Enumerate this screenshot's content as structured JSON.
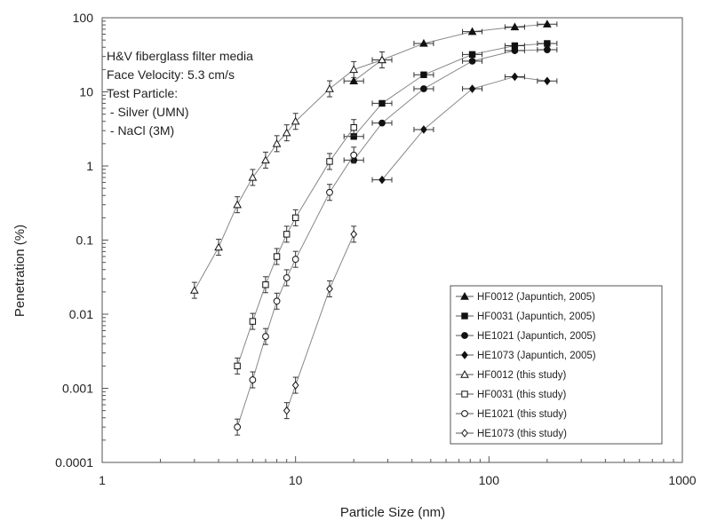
{
  "chart_data": {
    "type": "scatter",
    "xlabel": "Particle Size (nm)",
    "ylabel": "Penetration (%)",
    "x_scale": "log",
    "y_scale": "log",
    "xlim": [
      1,
      1000
    ],
    "ylim": [
      0.0001,
      100
    ],
    "x_ticks": [
      1,
      10,
      100,
      1000
    ],
    "x_tick_labels": [
      "1",
      "10",
      "100",
      "1000"
    ],
    "y_ticks": [
      0.0001,
      0.001,
      0.01,
      0.1,
      1,
      10,
      100
    ],
    "y_tick_labels": [
      "0.0001",
      "0.001",
      "0.01",
      "0.1",
      "1",
      "10",
      "100"
    ],
    "grid": false,
    "legend_position": "bottom-right",
    "annotations": [
      "H&V fiberglass filter media",
      "Face Velocity: 5.3 cm/s",
      "Test Particle:",
      " - Silver (UMN)",
      " - NaCl (3M)"
    ],
    "series": [
      {
        "name": "HF0012 (Japuntich, 2005)",
        "marker": "triangle",
        "filled": true,
        "x": [
          20,
          28,
          46,
          82,
          136,
          200
        ],
        "y": [
          14,
          27,
          45,
          65,
          75,
          82
        ]
      },
      {
        "name": "HF0031 (Japuntich, 2005)",
        "marker": "square",
        "filled": true,
        "x": [
          20,
          28,
          46,
          82,
          136,
          200
        ],
        "y": [
          2.5,
          7,
          17,
          32,
          42,
          45
        ]
      },
      {
        "name": "HE1021 (Japuntich, 2005)",
        "marker": "circle",
        "filled": true,
        "x": [
          20,
          28,
          46,
          82,
          136,
          200
        ],
        "y": [
          1.2,
          3.8,
          11,
          26,
          36,
          37
        ]
      },
      {
        "name": "HE1073 (Japuntich, 2005)",
        "marker": "diamond",
        "filled": true,
        "x": [
          28,
          46,
          82,
          136,
          200
        ],
        "y": [
          0.65,
          3.1,
          11,
          16,
          14
        ]
      },
      {
        "name": "HF0012 (this study)",
        "marker": "triangle",
        "filled": false,
        "x": [
          3,
          4,
          5,
          6,
          7,
          8,
          9,
          10,
          15,
          20,
          28
        ],
        "y": [
          0.021,
          0.08,
          0.3,
          0.7,
          1.2,
          2.0,
          2.8,
          4.0,
          11,
          20,
          27
        ]
      },
      {
        "name": "HF0031 (this study)",
        "marker": "square",
        "filled": false,
        "x": [
          5,
          6,
          7,
          8,
          9,
          10,
          15,
          20
        ],
        "y": [
          0.002,
          0.008,
          0.025,
          0.06,
          0.12,
          0.2,
          1.15,
          3.3
        ]
      },
      {
        "name": "HE1021 (this study)",
        "marker": "circle",
        "filled": false,
        "x": [
          5,
          6,
          7,
          8,
          9,
          10,
          15,
          20
        ],
        "y": [
          0.0003,
          0.0013,
          0.005,
          0.015,
          0.031,
          0.055,
          0.44,
          1.4
        ]
      },
      {
        "name": "HE1073 (this study)",
        "marker": "diamond",
        "filled": false,
        "x": [
          9,
          10,
          15,
          20
        ],
        "y": [
          0.0005,
          0.0011,
          0.022,
          0.12
        ]
      }
    ]
  }
}
